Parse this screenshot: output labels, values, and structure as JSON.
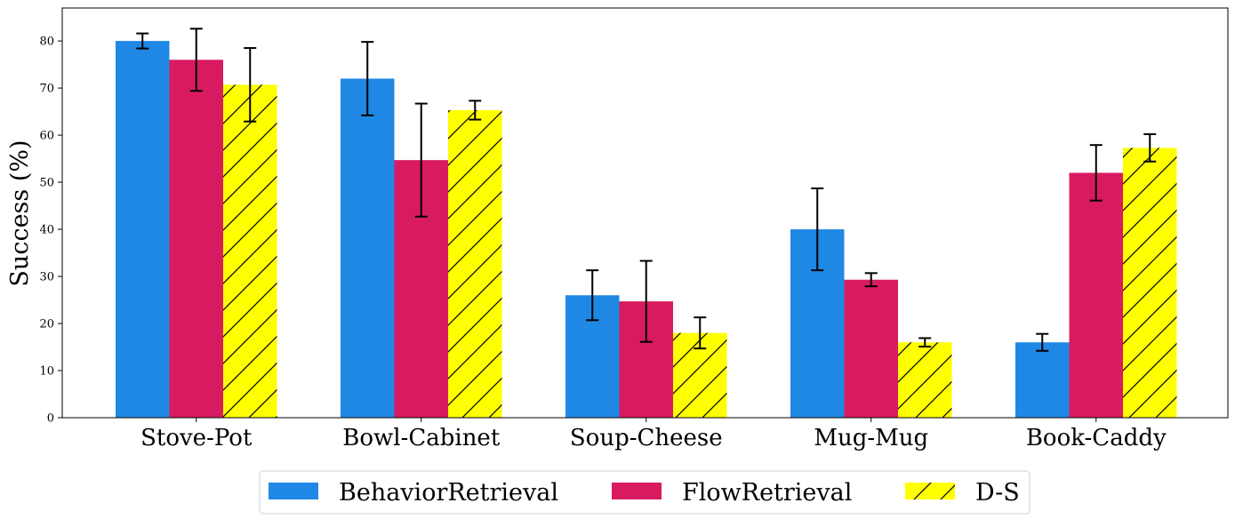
{
  "chart_data": {
    "type": "bar",
    "title": "",
    "xlabel": "",
    "ylabel": "Success (%)",
    "ylim": [
      0,
      87
    ],
    "yticks": [
      0,
      10,
      20,
      30,
      40,
      50,
      60,
      70,
      80
    ],
    "grid": false,
    "legend_position": "bottom-center",
    "categories": [
      "Stove-Pot",
      "Bowl-Cabinet",
      "Soup-Cheese",
      "Mug-Mug",
      "Book-Caddy"
    ],
    "series": [
      {
        "name": "BehaviorRetrieval",
        "color": "#1f88e5",
        "hatch": false,
        "values": [
          80,
          72,
          26,
          40,
          16
        ],
        "errors": [
          1.6,
          7.8,
          5.3,
          8.7,
          1.8
        ]
      },
      {
        "name": "FlowRetrieval",
        "color": "#d81b60",
        "hatch": false,
        "values": [
          76,
          54.7,
          24.7,
          29.3,
          52
        ],
        "errors": [
          6.6,
          12,
          8.6,
          1.4,
          5.9
        ]
      },
      {
        "name": "D-S",
        "color": "#ffff00",
        "hatch": true,
        "values": [
          70.7,
          65.3,
          18,
          16,
          57.3
        ],
        "errors": [
          7.8,
          2,
          3.3,
          0.9,
          2.9
        ]
      }
    ]
  }
}
